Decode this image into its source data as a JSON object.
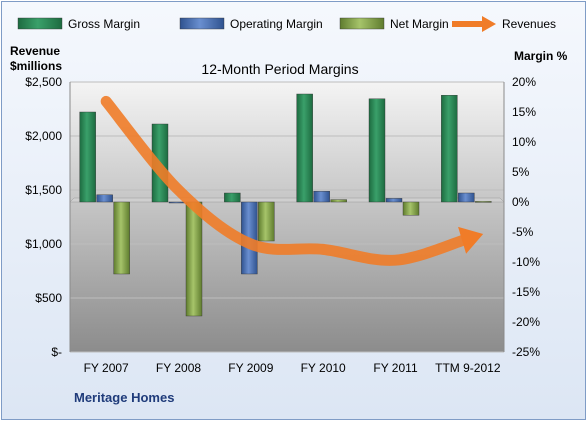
{
  "chart_data": {
    "type": "bar",
    "title": "12-Month Period Margins",
    "company": "Meritage Homes",
    "categories": [
      "FY 2007",
      "FY 2008",
      "FY 2009",
      "FY 2010",
      "FY 2011",
      "TTM 9-2012"
    ],
    "left_axis": {
      "label_line1": "Revenue",
      "label_line2": "$millions",
      "range": [
        0,
        2500
      ],
      "ticks": [
        0,
        500,
        1000,
        1500,
        2000,
        2500
      ],
      "tick_labels": [
        "$-",
        "$500",
        "$1,000",
        "$1,500",
        "$2,000",
        "$2,500"
      ]
    },
    "right_axis": {
      "label": "Margin %",
      "range": [
        -25,
        20
      ],
      "ticks": [
        20,
        15,
        10,
        5,
        0,
        -5,
        -10,
        -15,
        -20,
        -25
      ],
      "tick_labels": [
        "20%",
        "15%",
        "10%",
        "5%",
        "0%",
        "-5%",
        "-10%",
        "-15%",
        "-20%",
        "-25%"
      ]
    },
    "series": [
      {
        "name": "Gross Margin",
        "type": "bar",
        "axis": "right",
        "color": "#2e8b57",
        "values": [
          15.0,
          13.0,
          1.5,
          18.0,
          17.2,
          17.8
        ]
      },
      {
        "name": "Operating Margin",
        "type": "bar",
        "axis": "right",
        "color": "#4a72b8",
        "values": [
          1.2,
          0.0,
          -12.0,
          1.8,
          0.6,
          1.5
        ]
      },
      {
        "name": "Net Margin",
        "type": "bar",
        "axis": "right",
        "color": "#8aab4f",
        "values": [
          -12.0,
          -19.0,
          -6.5,
          0.4,
          -2.2,
          0.1
        ]
      },
      {
        "name": "Revenues",
        "type": "line",
        "axis": "left",
        "color": "#f07c28",
        "values": [
          2320,
          1500,
          1000,
          950,
          850,
          1050
        ]
      }
    ],
    "grid": true,
    "legend": "top"
  }
}
